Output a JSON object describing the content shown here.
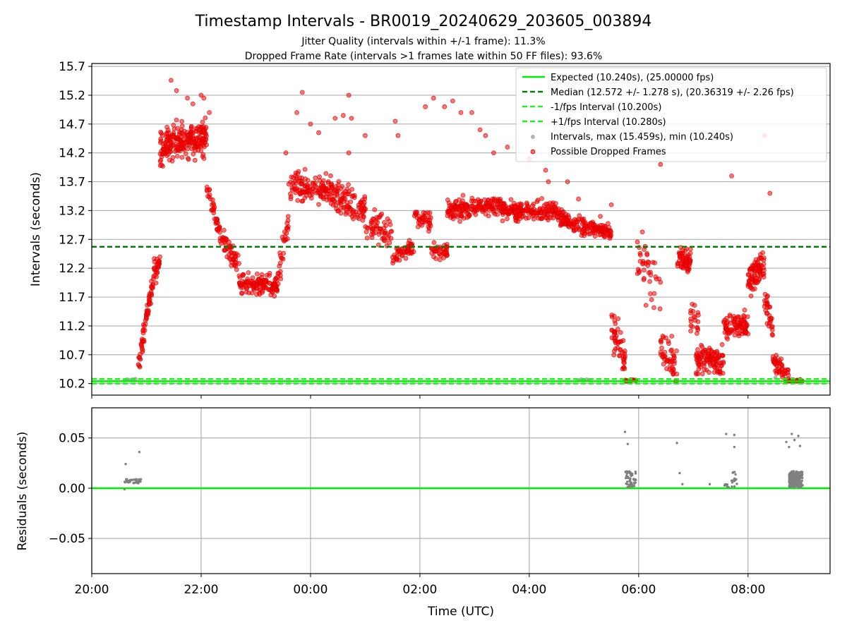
{
  "figure": {
    "title": "Timestamp Intervals - BR0019_20240629_203605_003894",
    "subtitle1": "Jitter Quality (intervals within +/-1 frame): 11.3%",
    "subtitle2": "Dropped Frame Rate (intervals >1 frames late within 50 FF files): 93.6%"
  },
  "colors": {
    "expected": "#00ee00",
    "median": "#008000",
    "fps_interval": "#22ee22",
    "valid_points": "#808080",
    "dropped_points": "#ff0000",
    "grid": "#b0b0b0"
  },
  "chart_data": [
    {
      "type": "scatter",
      "panel": "intervals",
      "title": "Timestamp Intervals - BR0019_20240629_203605_003894",
      "xlabel": "",
      "ylabel": "Intervals (seconds)",
      "x_unit": "hours since 20:00 UTC",
      "xlim": [
        0,
        13.5
      ],
      "ylim": [
        10.0,
        15.75
      ],
      "y_ticks": [
        "10.2",
        "10.7",
        "11.2",
        "11.7",
        "12.2",
        "12.7",
        "13.2",
        "13.7",
        "14.2",
        "14.7",
        "15.2",
        "15.7"
      ],
      "x_ticks": [
        "20:00",
        "22:00",
        "00:00",
        "02:00",
        "04:00",
        "06:00",
        "08:00"
      ],
      "grid": "horizontal",
      "legend_position": "top-right",
      "reference_lines": [
        {
          "name": "Expected (10.240s), (25.00000 fps)",
          "y": 10.24,
          "style": "solid"
        },
        {
          "name": "Median (12.572 +/- 1.278 s), (20.36319 +/- 2.26 fps)",
          "y": 12.572,
          "style": "dashed"
        },
        {
          "name": "-1/fps Interval (10.200s)",
          "y": 10.2,
          "style": "dashed"
        },
        {
          "name": "+1/fps Interval (10.280s)",
          "y": 10.28,
          "style": "dashed"
        }
      ],
      "series": [
        {
          "name": "Intervals, max (15.459s), min (10.240s)",
          "points": [
            [
              0.6,
              10.26
            ],
            [
              0.65,
              10.27
            ],
            [
              0.7,
              10.26
            ],
            [
              0.75,
              10.27
            ],
            [
              0.8,
              10.28
            ],
            [
              0.85,
              10.65
            ],
            [
              0.88,
              10.5
            ],
            [
              0.9,
              10.62
            ],
            [
              8.9,
              10.26
            ],
            [
              8.95,
              10.27
            ],
            [
              9.0,
              10.26
            ],
            [
              9.05,
              10.27
            ],
            [
              9.1,
              10.26
            ],
            [
              12.5,
              10.3
            ],
            [
              12.55,
              10.65
            ],
            [
              12.7,
              10.27
            ],
            [
              12.8,
              10.28
            ],
            [
              12.9,
              10.27
            ]
          ]
        },
        {
          "name": "Possible Dropped Frames",
          "segments": [
            {
              "x": [
                0.85,
                1.15
              ],
              "y": [
                10.45,
                12.2
              ],
              "n": 70,
              "spread": 0.18
            },
            {
              "x": [
                1.15,
                1.25
              ],
              "y": [
                12.0,
                12.45
              ],
              "n": 20,
              "spread": 0.15
            },
            {
              "x": [
                1.25,
                2.1
              ],
              "y": [
                14.3,
                14.5
              ],
              "n": 230,
              "spread": 0.3
            },
            {
              "x": [
                2.1,
                2.3
              ],
              "y": [
                13.6,
                13.0
              ],
              "n": 30,
              "spread": 0.2
            },
            {
              "x": [
                2.3,
                2.7
              ],
              "y": [
                12.9,
                12.2
              ],
              "n": 60,
              "spread": 0.2
            },
            {
              "x": [
                2.7,
                3.4
              ],
              "y": [
                11.9,
                11.9
              ],
              "n": 130,
              "spread": 0.18
            },
            {
              "x": [
                3.4,
                3.6
              ],
              "y": [
                12.0,
                13.0
              ],
              "n": 30,
              "spread": 0.25
            },
            {
              "x": [
                3.6,
                4.35
              ],
              "y": [
                13.6,
                13.6
              ],
              "n": 120,
              "spread": 0.25
            },
            {
              "x": [
                4.35,
                5.0
              ],
              "y": [
                13.5,
                13.2
              ],
              "n": 110,
              "spread": 0.25
            },
            {
              "x": [
                5.0,
                5.5
              ],
              "y": [
                13.0,
                12.8
              ],
              "n": 60,
              "spread": 0.25
            },
            {
              "x": [
                5.5,
                5.9
              ],
              "y": [
                12.4,
                12.6
              ],
              "n": 50,
              "spread": 0.15
            },
            {
              "x": [
                5.9,
                6.2
              ],
              "y": [
                13.1,
                13.0
              ],
              "n": 40,
              "spread": 0.2
            },
            {
              "x": [
                6.2,
                6.5
              ],
              "y": [
                12.5,
                12.5
              ],
              "n": 40,
              "spread": 0.15
            },
            {
              "x": [
                6.5,
                7.5
              ],
              "y": [
                13.2,
                13.3
              ],
              "n": 180,
              "spread": 0.16
            },
            {
              "x": [
                7.5,
                8.5
              ],
              "y": [
                13.2,
                13.2
              ],
              "n": 180,
              "spread": 0.15
            },
            {
              "x": [
                8.5,
                9.1
              ],
              "y": [
                13.1,
                12.9
              ],
              "n": 100,
              "spread": 0.15
            },
            {
              "x": [
                9.1,
                9.5
              ],
              "y": [
                12.9,
                12.8
              ],
              "n": 80,
              "spread": 0.13
            },
            {
              "x": [
                9.5,
                9.75
              ],
              "y": [
                11.2,
                10.6
              ],
              "n": 50,
              "spread": 0.3
            },
            {
              "x": [
                9.75,
                9.95
              ],
              "y": [
                10.24,
                10.26
              ],
              "n": 14,
              "spread": 0.02
            },
            {
              "x": [
                9.95,
                10.4
              ],
              "y": [
                12.4,
                11.7
              ],
              "n": 40,
              "spread": 0.55
            },
            {
              "x": [
                10.4,
                10.7
              ],
              "y": [
                10.8,
                10.5
              ],
              "n": 50,
              "spread": 0.3
            },
            {
              "x": [
                10.7,
                10.95
              ],
              "y": [
                12.45,
                12.3
              ],
              "n": 60,
              "spread": 0.2
            },
            {
              "x": [
                10.95,
                11.1
              ],
              "y": [
                11.3,
                11.3
              ],
              "n": 20,
              "spread": 0.3
            },
            {
              "x": [
                11.05,
                11.55
              ],
              "y": [
                10.6,
                10.6
              ],
              "n": 110,
              "spread": 0.25
            },
            {
              "x": [
                11.55,
                12.0
              ],
              "y": [
                11.2,
                11.2
              ],
              "n": 90,
              "spread": 0.2
            },
            {
              "x": [
                12.0,
                12.3
              ],
              "y": [
                12.0,
                12.3
              ],
              "n": 80,
              "spread": 0.25
            },
            {
              "x": [
                12.3,
                12.45
              ],
              "y": [
                11.6,
                11.2
              ],
              "n": 30,
              "spread": 0.25
            },
            {
              "x": [
                12.45,
                12.75
              ],
              "y": [
                10.6,
                10.3
              ],
              "n": 50,
              "spread": 0.15
            },
            {
              "x": [
                12.75,
                13.0
              ],
              "y": [
                10.24,
                10.26
              ],
              "n": 20,
              "spread": 0.02
            }
          ],
          "outliers": [
            [
              1.45,
              15.459
            ],
            [
              1.55,
              15.28
            ],
            [
              1.75,
              15.15
            ],
            [
              1.85,
              15.05
            ],
            [
              2.0,
              15.2
            ],
            [
              2.05,
              15.15
            ],
            [
              2.15,
              14.9
            ],
            [
              3.55,
              14.2
            ],
            [
              3.75,
              14.9
            ],
            [
              3.85,
              15.25
            ],
            [
              4.0,
              14.7
            ],
            [
              4.15,
              14.55
            ],
            [
              4.45,
              14.8
            ],
            [
              4.6,
              14.85
            ],
            [
              4.7,
              15.2
            ],
            [
              4.75,
              14.8
            ],
            [
              4.7,
              14.2
            ],
            [
              5.0,
              14.5
            ],
            [
              5.55,
              14.75
            ],
            [
              5.6,
              14.5
            ],
            [
              6.1,
              15.0
            ],
            [
              6.25,
              15.15
            ],
            [
              6.45,
              15.0
            ],
            [
              6.6,
              15.1
            ],
            [
              6.75,
              14.9
            ],
            [
              6.95,
              14.9
            ],
            [
              7.1,
              14.6
            ],
            [
              7.2,
              14.5
            ],
            [
              7.35,
              14.2
            ],
            [
              7.6,
              14.3
            ],
            [
              8.0,
              14.1
            ],
            [
              8.3,
              13.9
            ],
            [
              8.35,
              13.7
            ],
            [
              8.7,
              13.7
            ],
            [
              8.9,
              13.4
            ],
            [
              9.3,
              13.1
            ],
            [
              9.5,
              13.3
            ],
            [
              10.4,
              14.0
            ],
            [
              11.7,
              13.8
            ],
            [
              12.3,
              14.5
            ],
            [
              12.4,
              13.5
            ]
          ]
        }
      ]
    },
    {
      "type": "scatter",
      "panel": "residuals",
      "xlabel": "Time (UTC)",
      "ylabel": "Residuals (seconds)",
      "x_unit": "hours since 20:00 UTC",
      "xlim": [
        0,
        13.5
      ],
      "ylim": [
        -0.085,
        0.08
      ],
      "y_ticks": [
        "0.05",
        "0.00",
        "−0.05"
      ],
      "x_ticks": [
        "20:00",
        "22:00",
        "00:00",
        "02:00",
        "04:00",
        "06:00",
        "08:00"
      ],
      "grid": "both",
      "reference_lines": [
        {
          "name": "zero",
          "y": 0.0,
          "style": "solid"
        }
      ],
      "series": [
        {
          "name": "Residuals",
          "clusters": [
            {
              "x": [
                0.6,
                0.9
              ],
              "y": [
                0.005,
                0.009
              ],
              "n": 40
            },
            {
              "x": [
                9.75,
                9.95
              ],
              "y": [
                0.001,
                0.017
              ],
              "n": 55
            },
            {
              "x": [
                11.55,
                11.65
              ],
              "y": [
                0.001,
                0.004
              ],
              "n": 8
            },
            {
              "x": [
                11.7,
                11.8
              ],
              "y": [
                0.001,
                0.017
              ],
              "n": 14
            },
            {
              "x": [
                12.75,
                13.0
              ],
              "y": [
                0.001,
                0.017
              ],
              "n": 200
            }
          ],
          "outliers": [
            [
              0.62,
              0.024
            ],
            [
              0.87,
              0.036
            ],
            [
              0.6,
              -0.001
            ],
            [
              9.75,
              0.056
            ],
            [
              9.8,
              0.044
            ],
            [
              10.7,
              0.045
            ],
            [
              10.75,
              0.015
            ],
            [
              10.8,
              0.004
            ],
            [
              11.3,
              0.004
            ],
            [
              11.6,
              0.054
            ],
            [
              11.75,
              0.053
            ],
            [
              11.75,
              0.041
            ],
            [
              12.7,
              0.046
            ],
            [
              12.75,
              0.041
            ],
            [
              12.8,
              0.054
            ],
            [
              12.85,
              0.048
            ],
            [
              12.92,
              0.052
            ],
            [
              12.95,
              0.042
            ]
          ]
        }
      ]
    }
  ]
}
